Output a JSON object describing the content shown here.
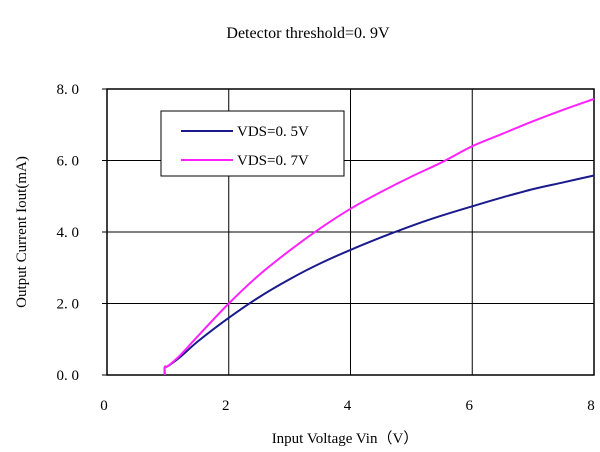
{
  "chart_data": {
    "type": "line",
    "title": "Detector threshold=0. 9V",
    "xlabel": "Input Voltage Vin（V）",
    "ylabel": "Output Current Iout(mA)",
    "xlim": [
      0,
      8
    ],
    "ylim": [
      0,
      8
    ],
    "xticks": [
      0,
      2,
      4,
      6,
      8
    ],
    "xtick_labels": [
      "0",
      "2",
      "4",
      "6",
      "8"
    ],
    "yticks": [
      0,
      2,
      4,
      6,
      8
    ],
    "ytick_labels": [
      "0. 0",
      "2. 0",
      "4. 0",
      "6. 0",
      "8. 0"
    ],
    "grid": true,
    "legend_position": "top-left",
    "series": [
      {
        "name": "VDS=0. 5V",
        "color": "#1a1a8c",
        "x": [
          0.95,
          0.95,
          1.0,
          1.2,
          1.5,
          2.0,
          2.5,
          3.0,
          3.5,
          4.0,
          4.5,
          5.0,
          5.5,
          6.0,
          6.5,
          7.0,
          7.5,
          8.0
        ],
        "y": [
          0.0,
          0.22,
          0.25,
          0.5,
          0.95,
          1.6,
          2.18,
          2.68,
          3.12,
          3.5,
          3.85,
          4.17,
          4.46,
          4.72,
          4.97,
          5.2,
          5.39,
          5.58
        ]
      },
      {
        "name": "VDS=0. 7V",
        "color": "#ff22ff",
        "x": [
          0.95,
          0.95,
          1.0,
          1.2,
          1.5,
          2.0,
          2.5,
          3.0,
          3.5,
          4.0,
          4.5,
          5.0,
          5.5,
          6.0,
          6.5,
          7.0,
          7.5,
          8.0
        ],
        "y": [
          0.0,
          0.22,
          0.25,
          0.55,
          1.1,
          2.0,
          2.8,
          3.48,
          4.1,
          4.65,
          5.12,
          5.55,
          5.95,
          6.4,
          6.75,
          7.1,
          7.42,
          7.72
        ]
      }
    ]
  }
}
